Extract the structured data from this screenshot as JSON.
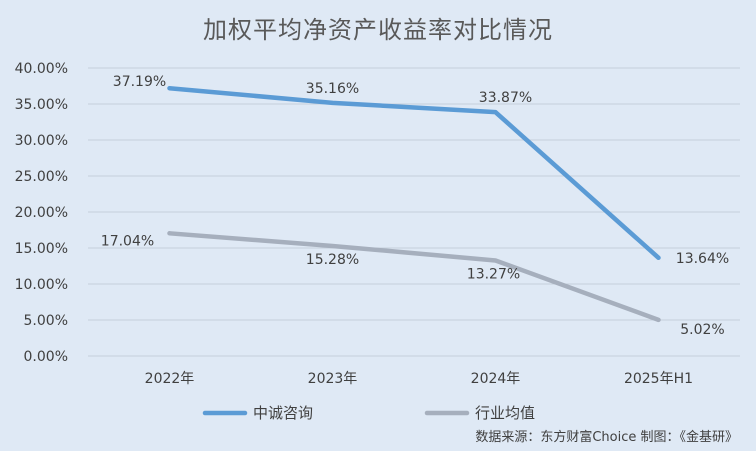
{
  "chart_data": {
    "type": "line",
    "title": "加权平均净资产收益率对比情况",
    "categories": [
      "2022年",
      "2023年",
      "2024年",
      "2025年H1"
    ],
    "series": [
      {
        "name": "中诚咨询",
        "values": [
          37.19,
          35.16,
          33.87,
          13.64
        ],
        "labels": [
          "37.19%",
          "35.16%",
          "33.87%",
          "13.64%"
        ],
        "color": "#5b9bd5"
      },
      {
        "name": "行业均值",
        "values": [
          17.04,
          15.28,
          13.27,
          5.02
        ],
        "labels": [
          "17.04%",
          "15.28%",
          "13.27%",
          "5.02%"
        ],
        "color": "#a6afbd"
      }
    ],
    "yticks": [
      "0.00%",
      "5.00%",
      "10.00%",
      "15.00%",
      "20.00%",
      "25.00%",
      "30.00%",
      "35.00%",
      "40.00%"
    ],
    "ylim": [
      0,
      40
    ],
    "grid": true,
    "legend": "bottom"
  },
  "source_note": "数据来源：东方财富Choice  制图：《金基研》",
  "colors": {
    "background": "#dfe9f5",
    "grid": "#c5cfdb",
    "text": "#404040"
  }
}
